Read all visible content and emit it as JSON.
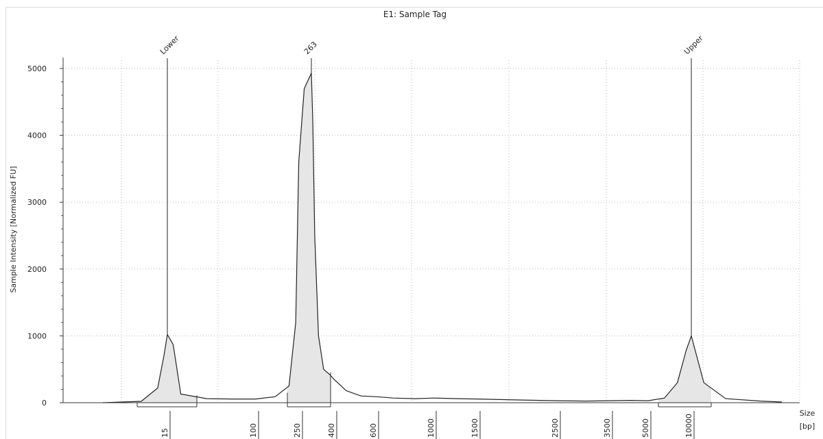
{
  "chart_data": {
    "type": "area",
    "title": "E1: Sample Tag",
    "ylabel": "Sample Intensity [Normalized FU]",
    "xlabel": [
      "Size",
      "[bp]"
    ],
    "ylim": [
      0,
      5000
    ],
    "y_ticks": [
      0,
      1000,
      2000,
      3000,
      4000,
      5000
    ],
    "y_tick_labels": [
      "0",
      "1000",
      "2000",
      "3000",
      "4000",
      "5000"
    ],
    "x_scale": "ladder (non-linear)",
    "x_tick_labels": [
      "15",
      "100",
      "250",
      "400",
      "600",
      "1000",
      "1500",
      "2500",
      "3500",
      "5000",
      "10000"
    ],
    "grid": true,
    "peaks": [
      {
        "label": "Lower",
        "size_bp": 15,
        "intensity": 1020
      },
      {
        "label": "263",
        "size_bp": 263,
        "intensity": 4930
      },
      {
        "label": "Upper",
        "size_bp": 10000,
        "intensity": 1000
      }
    ],
    "regions": [
      {
        "from_bp": 15,
        "to_bp": 15
      },
      {
        "from_bp": 250,
        "to_bp": 400
      },
      {
        "from_bp": 10000,
        "to_bp": 10000
      }
    ],
    "trace": {
      "x_bp": [
        1,
        5,
        10,
        13,
        15,
        17,
        20,
        35,
        60,
        100,
        150,
        200,
        230,
        245,
        255,
        263,
        270,
        280,
        300,
        330,
        370,
        400,
        450,
        520,
        600,
        700,
        850,
        1000,
        1250,
        1500,
        2000,
        2500,
        3000,
        3500,
        4250,
        5000,
        6500,
        8000,
        9200,
        10000,
        11000,
        13000,
        17000,
        20000
      ],
      "y": [
        0,
        20,
        220,
        700,
        1020,
        870,
        130,
        60,
        55,
        55,
        90,
        250,
        1200,
        3600,
        4700,
        4930,
        4200,
        2500,
        1000,
        500,
        420,
        350,
        180,
        100,
        90,
        70,
        60,
        70,
        60,
        55,
        40,
        30,
        25,
        30,
        35,
        30,
        70,
        300,
        780,
        1000,
        300,
        60,
        25,
        10
      ]
    }
  }
}
